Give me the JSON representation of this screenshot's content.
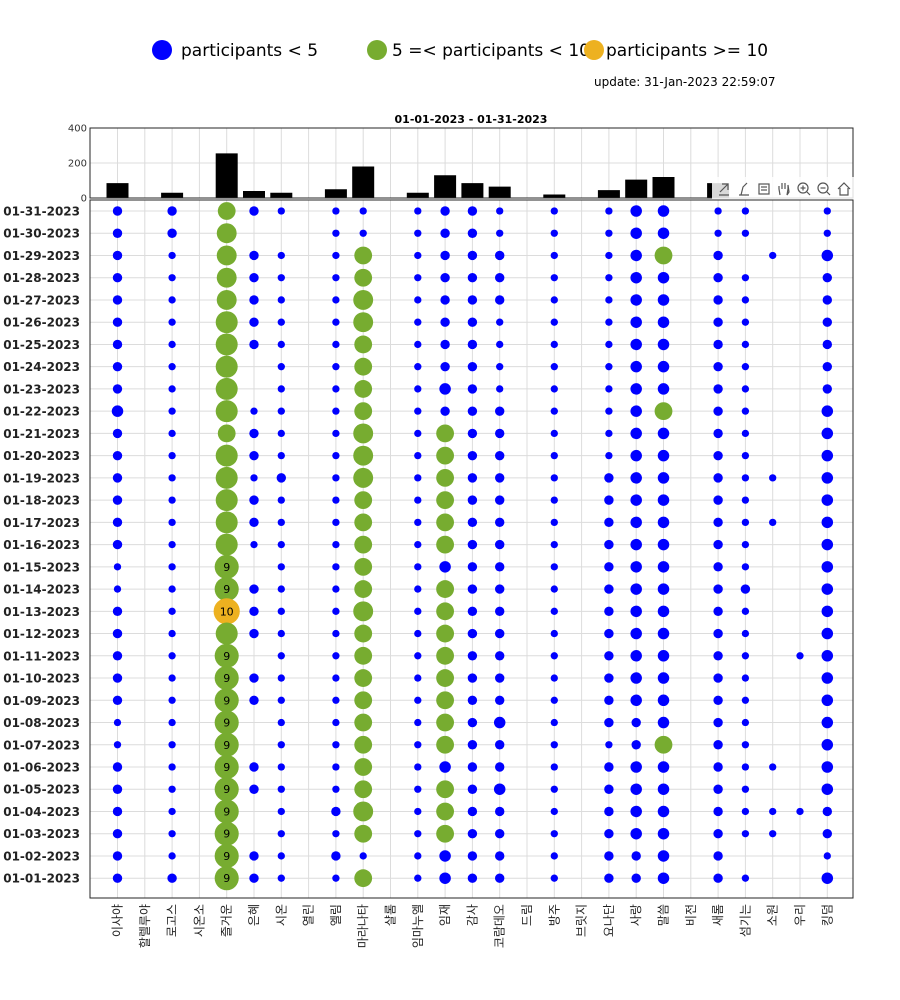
{
  "legend": {
    "low": "participants < 5",
    "mid": "5 =< participants < 10",
    "high": "participants >= 10"
  },
  "update_label": "update: 31-Jan-2023 22:59:07",
  "colors": {
    "low": "#0000FF",
    "mid": "#77AC30",
    "high": "#EDB120",
    "bar": "#000000"
  },
  "toolbar_icons": [
    "export-icon",
    "brush-icon",
    "data-tips-icon",
    "pan-icon",
    "zoom-in-icon",
    "zoom-out-icon",
    "home-icon"
  ],
  "chart_data": [
    {
      "type": "bar",
      "title": "01-01-2023  - 01-31-2023",
      "ylim": [
        0,
        400
      ],
      "yticks": [
        0,
        200,
        400
      ],
      "categories": [
        "이사야",
        "할렐루야",
        "로고스",
        "시온소",
        "즐거운",
        "은혜",
        "시온",
        "열린",
        "엘림",
        "마라나타",
        "샬롬",
        "임마누엘",
        "임재",
        "감사",
        "코람데오",
        "드림",
        "방주",
        "브릿지",
        "요나단",
        "사랑",
        "말씀",
        "비전",
        "새롬",
        "섬기는",
        "소원",
        "우리",
        "킹덤"
      ],
      "values": [
        85,
        0,
        30,
        0,
        255,
        40,
        30,
        0,
        50,
        180,
        0,
        30,
        130,
        85,
        65,
        0,
        20,
        0,
        45,
        105,
        120,
        0,
        85,
        0,
        0,
        0,
        0
      ]
    },
    {
      "type": "scatter",
      "categories": [
        "이사야",
        "할렐루야",
        "로고스",
        "시온소",
        "즐거운",
        "은혜",
        "시온",
        "열린",
        "엘림",
        "마라나타",
        "샬롬",
        "임마누엘",
        "임재",
        "감사",
        "코람데오",
        "드림",
        "방주",
        "브릿지",
        "요나단",
        "사랑",
        "말씀",
        "비전",
        "새롬",
        "섬기는",
        "소원",
        "우리",
        "킹덤"
      ],
      "dates": [
        "01-31-2023",
        "01-30-2023",
        "01-29-2023",
        "01-28-2023",
        "01-27-2023",
        "01-26-2023",
        "01-25-2023",
        "01-24-2023",
        "01-23-2023",
        "01-22-2023",
        "01-21-2023",
        "01-20-2023",
        "01-19-2023",
        "01-18-2023",
        "01-17-2023",
        "01-16-2023",
        "01-15-2023",
        "01-14-2023",
        "01-13-2023",
        "01-12-2023",
        "01-11-2023",
        "01-10-2023",
        "01-09-2023",
        "01-08-2023",
        "01-07-2023",
        "01-06-2023",
        "01-05-2023",
        "01-04-2023",
        "01-03-2023",
        "01-02-2023",
        "01-01-2023"
      ],
      "thresholds": {
        "mid": 5,
        "high": 10
      },
      "values": [
        [
          2,
          0,
          2,
          0,
          6,
          2,
          1,
          0,
          1,
          1,
          0,
          1,
          2,
          2,
          1,
          0,
          1,
          0,
          1,
          3,
          3,
          0,
          1,
          1,
          0,
          0,
          1
        ],
        [
          2,
          0,
          2,
          0,
          7,
          0,
          0,
          0,
          1,
          1,
          0,
          1,
          2,
          2,
          1,
          0,
          1,
          0,
          1,
          3,
          3,
          0,
          1,
          1,
          0,
          0,
          1
        ],
        [
          2,
          0,
          1,
          0,
          7,
          2,
          1,
          0,
          1,
          6,
          0,
          1,
          2,
          2,
          2,
          0,
          1,
          0,
          1,
          3,
          6,
          0,
          2,
          0,
          1,
          0,
          3
        ],
        [
          2,
          0,
          1,
          0,
          7,
          2,
          1,
          0,
          1,
          6,
          0,
          1,
          2,
          2,
          2,
          0,
          1,
          0,
          1,
          3,
          3,
          0,
          2,
          1,
          0,
          0,
          2
        ],
        [
          2,
          0,
          1,
          0,
          7,
          2,
          1,
          0,
          1,
          7,
          0,
          1,
          2,
          2,
          2,
          0,
          1,
          0,
          1,
          3,
          3,
          0,
          2,
          1,
          0,
          0,
          2
        ],
        [
          2,
          0,
          1,
          0,
          8,
          2,
          1,
          0,
          1,
          7,
          0,
          1,
          2,
          2,
          1,
          0,
          1,
          0,
          1,
          3,
          3,
          0,
          2,
          1,
          0,
          0,
          2
        ],
        [
          2,
          0,
          1,
          0,
          8,
          2,
          1,
          0,
          1,
          6,
          0,
          1,
          2,
          2,
          1,
          0,
          1,
          0,
          1,
          3,
          3,
          0,
          2,
          1,
          0,
          0,
          2
        ],
        [
          2,
          0,
          1,
          0,
          8,
          0,
          1,
          0,
          1,
          6,
          0,
          1,
          2,
          2,
          1,
          0,
          1,
          0,
          1,
          3,
          3,
          0,
          2,
          1,
          0,
          0,
          2
        ],
        [
          2,
          0,
          1,
          0,
          8,
          0,
          1,
          0,
          1,
          6,
          0,
          1,
          3,
          2,
          1,
          0,
          1,
          0,
          1,
          3,
          3,
          0,
          2,
          1,
          0,
          0,
          2
        ],
        [
          3,
          0,
          1,
          0,
          8,
          1,
          1,
          0,
          1,
          6,
          0,
          1,
          2,
          2,
          2,
          0,
          1,
          0,
          1,
          3,
          6,
          0,
          2,
          1,
          0,
          0,
          3
        ],
        [
          2,
          0,
          1,
          0,
          6,
          2,
          1,
          0,
          1,
          7,
          0,
          1,
          6,
          2,
          2,
          0,
          1,
          0,
          1,
          3,
          3,
          0,
          2,
          1,
          0,
          0,
          3
        ],
        [
          2,
          0,
          1,
          0,
          8,
          2,
          1,
          0,
          1,
          7,
          0,
          1,
          6,
          2,
          2,
          0,
          1,
          0,
          1,
          3,
          3,
          0,
          2,
          1,
          0,
          0,
          3
        ],
        [
          2,
          0,
          1,
          0,
          8,
          1,
          2,
          0,
          1,
          7,
          0,
          1,
          6,
          2,
          2,
          0,
          1,
          0,
          2,
          3,
          3,
          0,
          2,
          1,
          1,
          0,
          3
        ],
        [
          2,
          0,
          1,
          0,
          8,
          2,
          1,
          0,
          1,
          6,
          0,
          1,
          6,
          2,
          2,
          0,
          1,
          0,
          2,
          3,
          3,
          0,
          2,
          1,
          0,
          0,
          3
        ],
        [
          2,
          0,
          1,
          0,
          8,
          2,
          1,
          0,
          1,
          6,
          0,
          1,
          6,
          2,
          2,
          0,
          1,
          0,
          2,
          3,
          3,
          0,
          2,
          1,
          1,
          0,
          3
        ],
        [
          2,
          0,
          1,
          0,
          8,
          1,
          1,
          0,
          1,
          6,
          0,
          1,
          6,
          2,
          2,
          0,
          1,
          0,
          2,
          3,
          3,
          0,
          2,
          1,
          0,
          0,
          3
        ],
        [
          1,
          0,
          1,
          0,
          9,
          0,
          1,
          0,
          1,
          6,
          0,
          1,
          3,
          2,
          2,
          0,
          1,
          0,
          2,
          3,
          3,
          0,
          2,
          1,
          0,
          0,
          3
        ],
        [
          1,
          0,
          1,
          0,
          9,
          2,
          1,
          0,
          1,
          6,
          0,
          1,
          6,
          2,
          2,
          0,
          1,
          0,
          2,
          3,
          3,
          0,
          2,
          2,
          0,
          0,
          3
        ],
        [
          2,
          0,
          1,
          0,
          10,
          2,
          1,
          0,
          1,
          7,
          0,
          1,
          6,
          2,
          2,
          0,
          1,
          0,
          2,
          3,
          3,
          0,
          2,
          1,
          0,
          0,
          3
        ],
        [
          2,
          0,
          1,
          0,
          8,
          2,
          1,
          0,
          1,
          6,
          0,
          1,
          6,
          2,
          2,
          0,
          1,
          0,
          2,
          3,
          3,
          0,
          2,
          1,
          0,
          0,
          3
        ],
        [
          2,
          0,
          1,
          0,
          9,
          0,
          1,
          0,
          1,
          6,
          0,
          1,
          6,
          2,
          2,
          0,
          1,
          0,
          2,
          3,
          3,
          0,
          2,
          1,
          0,
          1,
          3
        ],
        [
          2,
          0,
          1,
          0,
          9,
          2,
          1,
          0,
          1,
          6,
          0,
          1,
          6,
          2,
          2,
          0,
          1,
          0,
          2,
          3,
          3,
          0,
          2,
          1,
          0,
          0,
          3
        ],
        [
          2,
          0,
          1,
          0,
          9,
          2,
          1,
          0,
          1,
          6,
          0,
          1,
          6,
          2,
          2,
          0,
          1,
          0,
          2,
          3,
          3,
          0,
          2,
          1,
          0,
          0,
          3
        ],
        [
          1,
          0,
          1,
          0,
          9,
          0,
          1,
          0,
          1,
          6,
          0,
          1,
          6,
          2,
          3,
          0,
          1,
          0,
          2,
          2,
          3,
          0,
          2,
          1,
          0,
          0,
          3
        ],
        [
          1,
          0,
          1,
          0,
          9,
          0,
          1,
          0,
          1,
          6,
          0,
          1,
          6,
          2,
          2,
          0,
          1,
          0,
          1,
          2,
          6,
          0,
          2,
          1,
          0,
          0,
          3
        ],
        [
          2,
          0,
          1,
          0,
          9,
          2,
          1,
          0,
          1,
          6,
          0,
          1,
          3,
          2,
          2,
          0,
          1,
          0,
          2,
          3,
          3,
          0,
          2,
          1,
          1,
          0,
          3
        ],
        [
          2,
          0,
          1,
          0,
          9,
          2,
          1,
          0,
          1,
          6,
          0,
          1,
          6,
          2,
          3,
          0,
          1,
          0,
          2,
          3,
          3,
          0,
          2,
          1,
          0,
          0,
          3
        ],
        [
          2,
          0,
          1,
          0,
          9,
          0,
          1,
          0,
          2,
          7,
          0,
          1,
          6,
          2,
          2,
          0,
          1,
          0,
          2,
          3,
          3,
          0,
          2,
          1,
          1,
          1,
          2
        ],
        [
          2,
          0,
          1,
          0,
          9,
          0,
          1,
          0,
          1,
          6,
          0,
          1,
          6,
          2,
          2,
          0,
          1,
          0,
          2,
          3,
          3,
          0,
          2,
          1,
          1,
          0,
          2
        ],
        [
          2,
          0,
          1,
          0,
          9,
          2,
          1,
          0,
          2,
          1,
          0,
          1,
          3,
          2,
          2,
          0,
          1,
          0,
          2,
          2,
          3,
          0,
          2,
          0,
          0,
          0,
          1
        ],
        [
          2,
          0,
          2,
          0,
          9,
          2,
          1,
          0,
          1,
          6,
          0,
          1,
          3,
          2,
          2,
          0,
          1,
          0,
          2,
          2,
          3,
          0,
          2,
          1,
          0,
          0,
          3
        ]
      ]
    }
  ]
}
